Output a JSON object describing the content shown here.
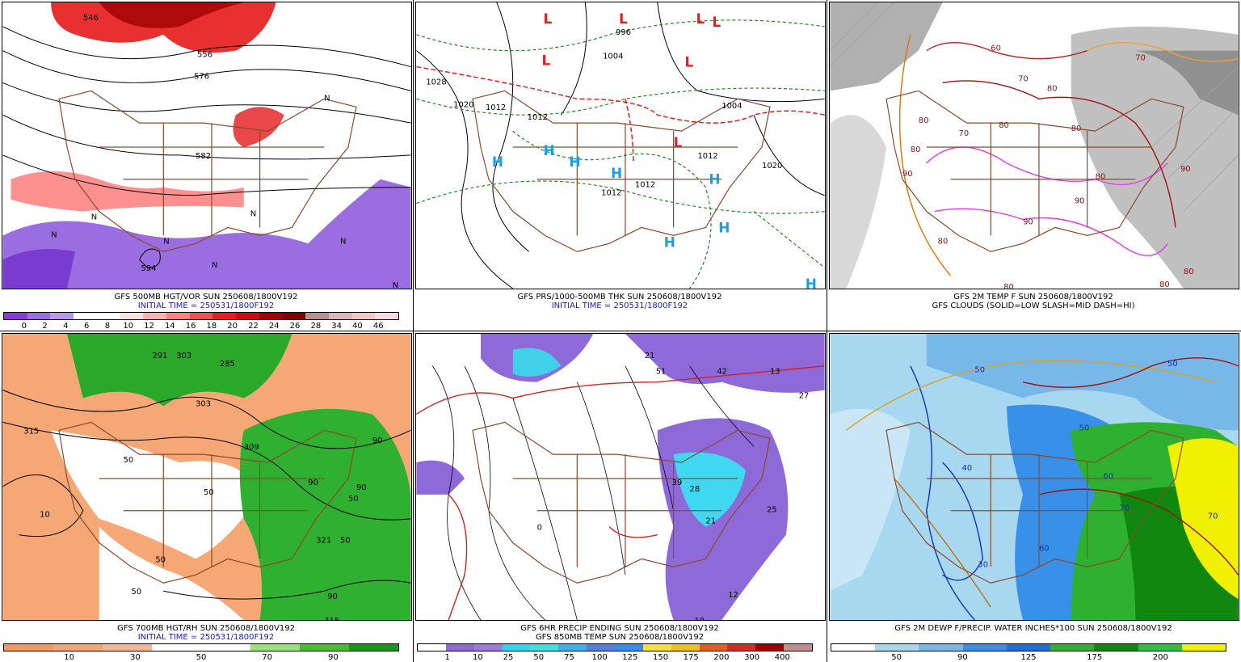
{
  "panels": [
    {
      "id": "p500",
      "line1": "GFS 500MB HGT/VOR SUN 250608/1800V192",
      "line2": "INITIAL TIME = 250531/1800F192",
      "line2_blue": true,
      "scale_colors": [
        "#8b3cd8",
        "#9a6ee0",
        "#b49ae8",
        "#ffffff",
        "#ffffff",
        "#ffe0e0",
        "#ffb0b0",
        "#ff8080",
        "#f05050",
        "#e02020",
        "#c01010",
        "#a00000",
        "#800000",
        "#b89090",
        "#d8b8b8",
        "#f0c8c8",
        "#ffd8e0"
      ],
      "scale_ticks": [
        "0",
        "2",
        "4",
        "6",
        "8",
        "10",
        "12",
        "14",
        "16",
        "18",
        "20",
        "22",
        "24",
        "26",
        "28",
        "34",
        "40",
        "46"
      ],
      "contour_labels": [
        "546",
        "556",
        "576",
        "582",
        "594",
        "N",
        "N",
        "N",
        "N",
        "N",
        "N",
        "N",
        "N"
      ]
    },
    {
      "id": "pprs",
      "line1": "GFS PRS/1000-500MB THK SUN 250608/1800V192",
      "line2": "INITIAL TIME = 250531/1800F192",
      "line2_blue": true,
      "scale_colors": [],
      "scale_ticks": [],
      "contour_labels": [
        "1028",
        "1020",
        "1012",
        "1012",
        "1012",
        "1012",
        "1012",
        "1020",
        "996",
        "1004",
        "1004"
      ],
      "highs": [
        "H",
        "H",
        "H",
        "H",
        "H",
        "H",
        "H",
        "H"
      ],
      "lows": [
        "L",
        "L",
        "L",
        "L",
        "L",
        "L",
        "L"
      ]
    },
    {
      "id": "ptemp",
      "line1": "GFS 2M TEMP F SUN 250608/1800V192",
      "line2": "GFS CLOUDS (SOLID=LOW SLASH=MID DASH=HI)",
      "line2_blue": false,
      "scale_colors": [],
      "scale_ticks": [],
      "contour_labels": [
        "80",
        "80",
        "80",
        "90",
        "90",
        "70",
        "70",
        "80",
        "90",
        "80",
        "60",
        "70",
        "80",
        "80",
        "90",
        "80",
        "80",
        "80"
      ]
    },
    {
      "id": "p700",
      "line1": "GFS 700MB HGT/RH SUN 250608/1800V192",
      "line2": "INITIAL TIME = 250531/1800F192",
      "line2_blue": true,
      "scale_colors": [
        "#f59a5a",
        "#f5a876",
        "#f7b993",
        "#ffffff",
        "#ffffff",
        "#9ce07a",
        "#45c02a",
        "#179a17"
      ],
      "scale_ticks": [
        "10",
        "30",
        "50",
        "70",
        "90"
      ],
      "contour_labels": [
        "303",
        "285",
        "291",
        "303",
        "315",
        "309",
        "321",
        "10",
        "50",
        "50",
        "50",
        "50",
        "90",
        "90",
        "90",
        "50",
        "90",
        "315",
        "50"
      ]
    },
    {
      "id": "pprecip",
      "line1": "GFS 6HR PRECIP ENDING SUN 250608/1800V192",
      "line2": "GFS 850MB TEMP SUN 250608/1800V192",
      "line2_blue": false,
      "scale_colors": [
        "#ffffff",
        "#8e6ad8",
        "#9c7ae0",
        "#33d4f0",
        "#40e0e0",
        "#3cb0f0",
        "#5080e0",
        "#3090f0",
        "#f8e040",
        "#f0c020",
        "#e06020",
        "#d03020",
        "#a00000",
        "#c09090"
      ],
      "scale_ticks": [
        "1",
        "10",
        "25",
        "50",
        "75",
        "100",
        "125",
        "150",
        "175",
        "200",
        "300",
        "400"
      ],
      "contour_labels": [
        "21",
        "51",
        "13",
        "42",
        "27",
        "39",
        "28",
        "21",
        "25",
        "12",
        "19",
        "0"
      ]
    },
    {
      "id": "pdew",
      "line1": "GFS 2M DEWP F/PRECIP. WATER INCHES*100 SUN 250608/1800V192",
      "line2": "",
      "line2_blue": false,
      "scale_colors": [
        "#ffffff",
        "#a8d8f0",
        "#78b8e8",
        "#3890e8",
        "#2070d8",
        "#30b030",
        "#108810",
        "#30c040",
        "#f0f000"
      ],
      "scale_ticks": [
        "50",
        "90",
        "125",
        "175",
        "200"
      ],
      "contour_labels": [
        "50",
        "40",
        "30",
        "50",
        "50",
        "60",
        "70",
        "60",
        "70"
      ]
    }
  ]
}
